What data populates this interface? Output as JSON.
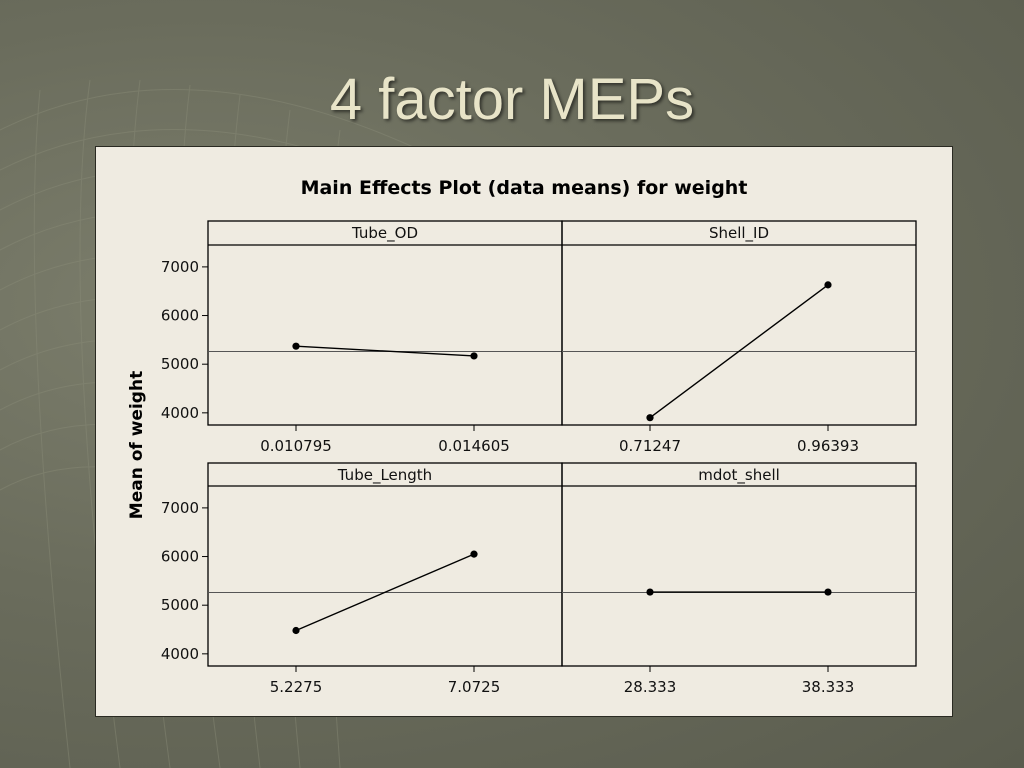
{
  "slide": {
    "title": "4 factor MEPs"
  },
  "chart_data": {
    "type": "line",
    "title": "Main Effects Plot (data means) for weight",
    "ylabel": "Mean of weight",
    "xlabel": "",
    "ylim": [
      3750,
      7450
    ],
    "y_ticks": [
      4000,
      5000,
      6000,
      7000
    ],
    "grand_mean": 5260,
    "grid": false,
    "panels": [
      {
        "name": "Tube_OD",
        "x": [
          "0.010795",
          "0.014605"
        ],
        "values": [
          5370,
          5170
        ]
      },
      {
        "name": "Shell_ID",
        "x": [
          "0.71247",
          "0.96393"
        ],
        "values": [
          3900,
          6630
        ]
      },
      {
        "name": "Tube_Length",
        "x": [
          "5.2275",
          "7.0725"
        ],
        "values": [
          4480,
          6050
        ]
      },
      {
        "name": "mdot_shell",
        "x": [
          "28.333",
          "38.333"
        ],
        "values": [
          5270,
          5270
        ]
      }
    ],
    "colors": {
      "line": "#000000",
      "mean_line": "#555555",
      "panel_bg": "#efebe1"
    }
  }
}
